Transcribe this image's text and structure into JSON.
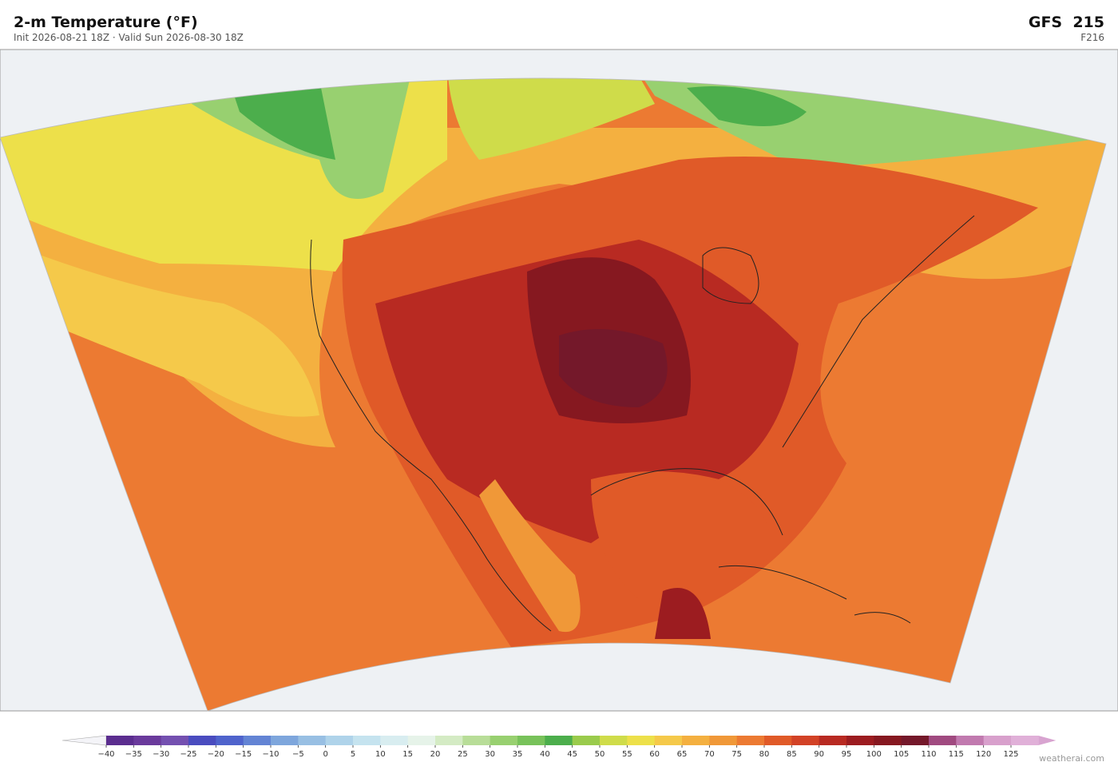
{
  "header": {
    "title": "2-m Temperature  (°F)",
    "subtitle": "Init 2026-08-21 18Z  ·  Valid Sun 2026-08-30 18Z",
    "model": "GFS  215",
    "forecast_hour": "F216"
  },
  "colorbar": {
    "ticks": [
      {
        "value": -40,
        "label": "−40"
      },
      {
        "value": -35,
        "label": "−35"
      },
      {
        "value": -30,
        "label": "−30"
      },
      {
        "value": -25,
        "label": "−25"
      },
      {
        "value": -20,
        "label": "−20"
      },
      {
        "value": -15,
        "label": "−15"
      },
      {
        "value": -10,
        "label": "−10"
      },
      {
        "value": -5,
        "label": "−5"
      },
      0,
      5,
      10,
      15,
      20,
      25,
      30,
      35,
      40,
      45,
      50,
      55,
      60,
      65,
      70,
      75,
      80,
      85,
      90,
      95,
      100,
      105,
      110,
      115,
      120,
      125
    ],
    "colors": [
      "#5b2d8f",
      "#6a3a9c",
      "#7450b0",
      "#4a4cbf",
      "#4f63cc",
      "#6384d4",
      "#7ea6dc",
      "#98bfe3",
      "#afd3ea",
      "#c5e3ef",
      "#d8edf0",
      "#e6f3e9",
      "#d4ebc4",
      "#b8dd98",
      "#98d070",
      "#78c25a",
      "#4cae4c",
      "#9acb4c",
      "#cfdc4a",
      "#ede04a",
      "#f5c94a",
      "#f4b040",
      "#f09838",
      "#ec7a32",
      "#e05a28",
      "#d24226",
      "#b82a22",
      "#9c1c20",
      "#861820",
      "#74182a",
      "#a04a80",
      "#c17aaf",
      "#d8a0cc",
      "#e0b0d8"
    ],
    "under_color": "#f4f4f8",
    "over_color": "#d8a4d0"
  },
  "footer": {
    "credit": "weatherai.com"
  }
}
